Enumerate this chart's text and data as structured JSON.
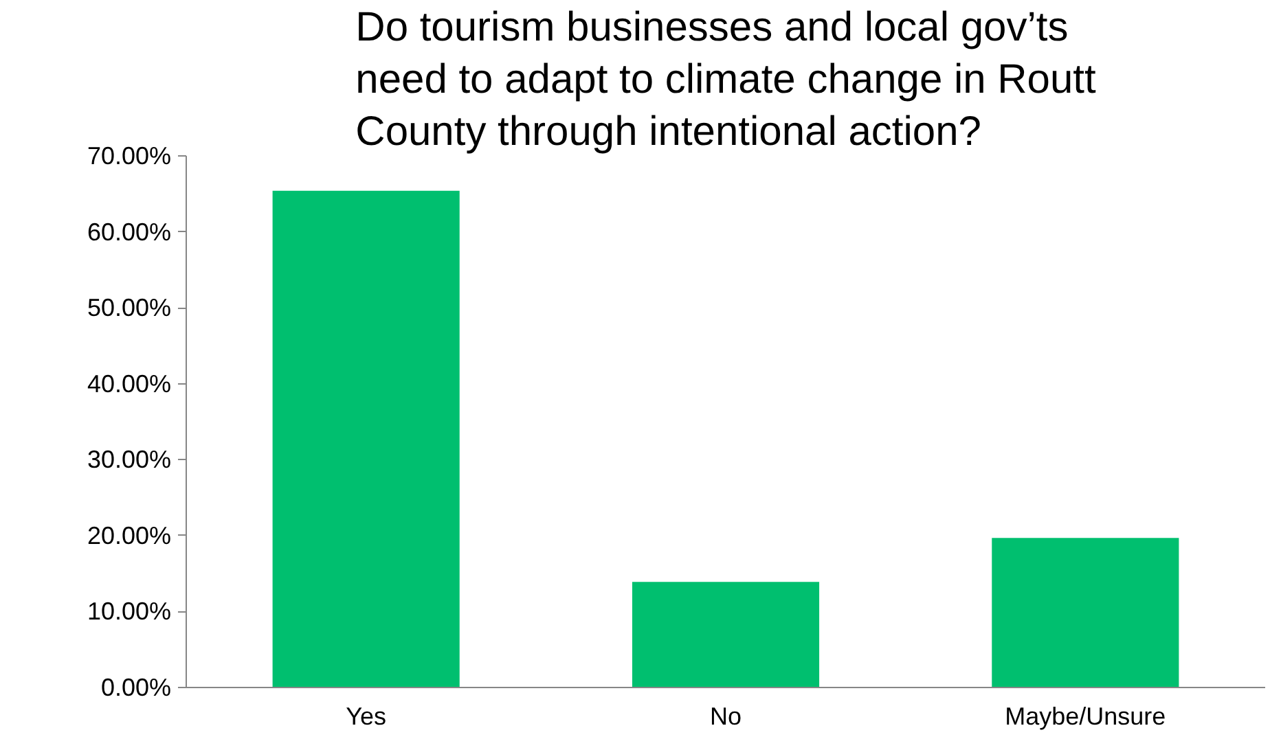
{
  "chart_data": {
    "type": "bar",
    "title": "Do tourism businesses and local gov’ts need to adapt to climate change in Routt County through intentional action?",
    "categories": [
      "Yes",
      "No",
      "Maybe/Unsure"
    ],
    "values": [
      65.4,
      13.9,
      19.7
    ],
    "color": "#00bf6f",
    "ylim": [
      0,
      70
    ],
    "yticks": [
      {
        "value": 0,
        "label": "0.00%"
      },
      {
        "value": 10,
        "label": "10.00%"
      },
      {
        "value": 20,
        "label": "20.00%"
      },
      {
        "value": 30,
        "label": "30.00%"
      },
      {
        "value": 40,
        "label": "40.00%"
      },
      {
        "value": 50,
        "label": "50.00%"
      },
      {
        "value": 60,
        "label": "60.00%"
      },
      {
        "value": 70,
        "label": "70.00%"
      }
    ],
    "grid": false
  }
}
